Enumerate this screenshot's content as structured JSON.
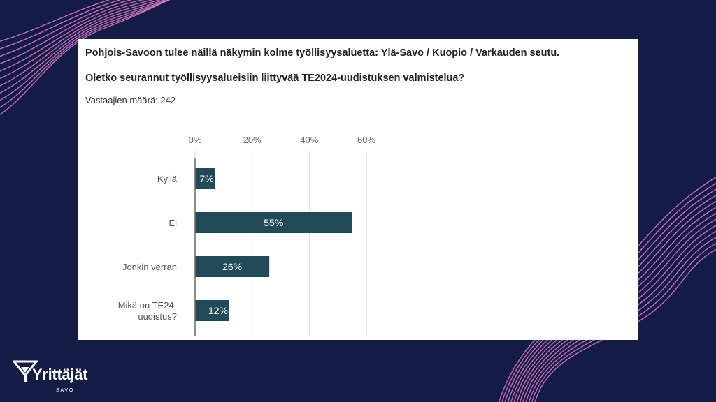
{
  "colors": {
    "background": "#141c45",
    "accent_lines": "#e27bc9",
    "bar": "#234a58",
    "panel": "#ffffff"
  },
  "slide": {
    "heading1": "Pohjois-Savoon tulee näillä näkymin kolme työllisyysaluetta: Ylä-Savo / Kuopio / Varkauden seutu.",
    "heading2": "Oletko seurannut työllisyysalueisiin liittyvää TE2024-uudistuksen valmistelua?",
    "respondents": "Vastaajien määrä: 242"
  },
  "logo": {
    "name": "Yrittäjät",
    "region": "SAVO",
    "icon": "yrittajat-logo-icon"
  },
  "chart_data": {
    "type": "bar",
    "orientation": "horizontal",
    "categories": [
      [
        "Kyllä"
      ],
      [
        "Ei"
      ],
      [
        "Jonkin verran"
      ],
      [
        "Mikä on TE24-",
        "uudistus?"
      ]
    ],
    "values": [
      7,
      55,
      26,
      12
    ],
    "value_labels": [
      "7%",
      "55%",
      "26%",
      "12%"
    ],
    "xticks": [
      "0%",
      "20%",
      "40%",
      "60%"
    ],
    "xtick_values": [
      0,
      20,
      40,
      60
    ],
    "xlim": [
      0,
      60
    ],
    "xaxis_position": "top",
    "grid": true,
    "legend": "none"
  }
}
